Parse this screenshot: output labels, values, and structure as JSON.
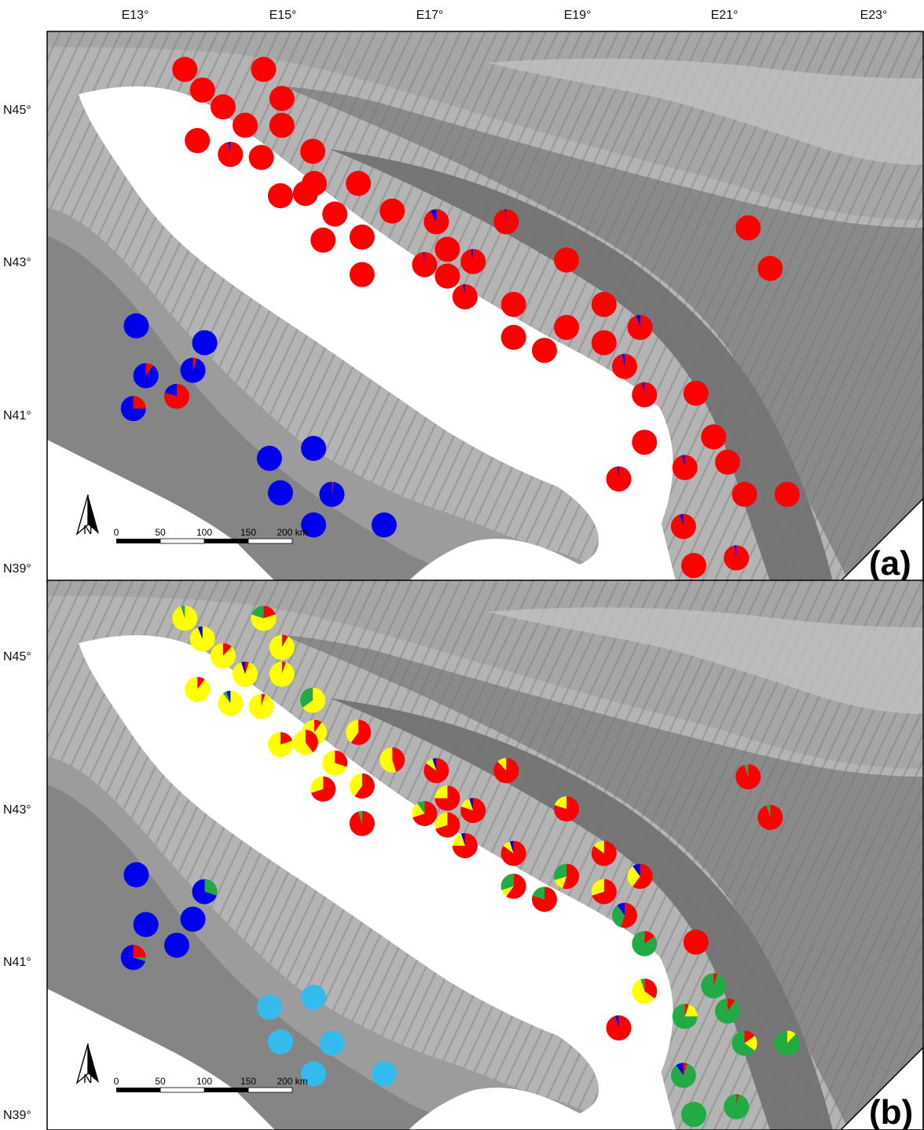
{
  "map": {
    "x_ticks": [
      "E13°",
      "E15°",
      "E17°",
      "E19°",
      "E21°",
      "E23°"
    ],
    "y_ticks": [
      "N45°",
      "N43°",
      "N41°",
      "N39°"
    ],
    "scale_bar": {
      "labels": [
        "0",
        "50",
        "100",
        "150",
        "200 km"
      ]
    },
    "north_label": "N",
    "panels": [
      {
        "label": "(a)"
      },
      {
        "label": "(b)"
      }
    ]
  },
  "colors": {
    "red": "#ff0000",
    "yellow": "#ffff00",
    "blue": "#0000ee",
    "green": "#22aa44",
    "cyan": "#33bbee",
    "sea": "#ffffff",
    "land_light": "#c8c8c8",
    "land_mid": "#a2a2a2",
    "land_dark": "#7a7a7a"
  },
  "panel_a_pies": [
    {
      "lon": 13.68,
      "lat": 45.75,
      "f": {
        "red": 1
      }
    },
    {
      "lon": 14.75,
      "lat": 45.75,
      "f": {
        "red": 1
      }
    },
    {
      "lon": 13.92,
      "lat": 45.48,
      "f": {
        "red": 1
      }
    },
    {
      "lon": 15.0,
      "lat": 45.37,
      "f": {
        "red": 1
      }
    },
    {
      "lon": 14.2,
      "lat": 45.26,
      "f": {
        "red": 1
      }
    },
    {
      "lon": 14.5,
      "lat": 45.02,
      "f": {
        "red": 1
      }
    },
    {
      "lon": 15.0,
      "lat": 45.02,
      "f": {
        "red": 1
      }
    },
    {
      "lon": 13.85,
      "lat": 44.82,
      "f": {
        "red": 1
      }
    },
    {
      "lon": 14.3,
      "lat": 44.64,
      "f": {
        "red": 0.97,
        "blue": 0.03
      }
    },
    {
      "lon": 14.72,
      "lat": 44.6,
      "f": {
        "red": 1
      }
    },
    {
      "lon": 15.42,
      "lat": 44.68,
      "f": {
        "red": 1
      }
    },
    {
      "lon": 15.44,
      "lat": 44.26,
      "f": {
        "red": 1
      }
    },
    {
      "lon": 16.04,
      "lat": 44.26,
      "f": {
        "red": 1
      }
    },
    {
      "lon": 14.98,
      "lat": 44.1,
      "f": {
        "red": 1
      }
    },
    {
      "lon": 15.32,
      "lat": 44.13,
      "f": {
        "red": 1
      }
    },
    {
      "lon": 15.72,
      "lat": 43.86,
      "f": {
        "red": 1
      }
    },
    {
      "lon": 16.5,
      "lat": 43.9,
      "f": {
        "red": 1
      }
    },
    {
      "lon": 17.1,
      "lat": 43.76,
      "f": {
        "red": 0.92,
        "blue": 0.08
      }
    },
    {
      "lon": 18.05,
      "lat": 43.76,
      "f": {
        "red": 0.98,
        "blue": 0.02
      }
    },
    {
      "lon": 15.56,
      "lat": 43.52,
      "f": {
        "red": 1
      }
    },
    {
      "lon": 16.09,
      "lat": 43.56,
      "f": {
        "red": 1
      }
    },
    {
      "lon": 17.25,
      "lat": 43.4,
      "f": {
        "red": 1
      }
    },
    {
      "lon": 17.6,
      "lat": 43.24,
      "f": {
        "red": 0.97,
        "blue": 0.03
      }
    },
    {
      "lon": 16.94,
      "lat": 43.2,
      "f": {
        "red": 0.98,
        "blue": 0.02
      }
    },
    {
      "lon": 18.87,
      "lat": 43.26,
      "f": {
        "red": 1
      }
    },
    {
      "lon": 21.34,
      "lat": 43.68,
      "f": {
        "red": 1
      }
    },
    {
      "lon": 21.64,
      "lat": 43.15,
      "f": {
        "red": 1
      }
    },
    {
      "lon": 16.09,
      "lat": 43.07,
      "f": {
        "red": 1
      }
    },
    {
      "lon": 17.25,
      "lat": 43.05,
      "f": {
        "red": 1
      }
    },
    {
      "lon": 17.49,
      "lat": 42.78,
      "f": {
        "red": 0.97,
        "blue": 0.03
      }
    },
    {
      "lon": 18.15,
      "lat": 42.68,
      "f": {
        "red": 1
      }
    },
    {
      "lon": 19.38,
      "lat": 42.68,
      "f": {
        "red": 1
      }
    },
    {
      "lon": 18.87,
      "lat": 42.38,
      "f": {
        "red": 1
      }
    },
    {
      "lon": 19.87,
      "lat": 42.38,
      "f": {
        "red": 0.95,
        "blue": 0.05
      }
    },
    {
      "lon": 18.15,
      "lat": 42.25,
      "f": {
        "red": 1
      }
    },
    {
      "lon": 19.38,
      "lat": 42.18,
      "f": {
        "red": 1
      }
    },
    {
      "lon": 18.57,
      "lat": 42.08,
      "f": {
        "red": 1
      }
    },
    {
      "lon": 19.66,
      "lat": 41.87,
      "f": {
        "red": 0.96,
        "blue": 0.04
      }
    },
    {
      "lon": 19.93,
      "lat": 41.5,
      "f": {
        "red": 0.97,
        "blue": 0.03
      }
    },
    {
      "lon": 20.63,
      "lat": 41.52,
      "f": {
        "red": 1
      }
    },
    {
      "lon": 20.87,
      "lat": 40.95,
      "f": {
        "red": 1
      }
    },
    {
      "lon": 19.93,
      "lat": 40.88,
      "f": {
        "red": 1
      }
    },
    {
      "lon": 21.06,
      "lat": 40.62,
      "f": {
        "red": 1
      }
    },
    {
      "lon": 20.48,
      "lat": 40.55,
      "f": {
        "red": 0.96,
        "blue": 0.04
      }
    },
    {
      "lon": 19.58,
      "lat": 40.4,
      "f": {
        "red": 0.98,
        "blue": 0.02
      }
    },
    {
      "lon": 21.29,
      "lat": 40.2,
      "f": {
        "red": 1
      }
    },
    {
      "lon": 21.87,
      "lat": 40.2,
      "f": {
        "red": 1
      }
    },
    {
      "lon": 20.46,
      "lat": 39.78,
      "f": {
        "red": 0.95,
        "blue": 0.05
      }
    },
    {
      "lon": 20.6,
      "lat": 39.27,
      "f": {
        "red": 1
      }
    },
    {
      "lon": 21.18,
      "lat": 39.37,
      "f": {
        "red": 0.97,
        "blue": 0.03
      }
    },
    {
      "lon": 13.02,
      "lat": 42.4,
      "f": {
        "blue": 1
      }
    },
    {
      "lon": 13.95,
      "lat": 42.18,
      "f": {
        "blue": 1
      }
    },
    {
      "lon": 13.15,
      "lat": 41.75,
      "f": {
        "red": 0.1,
        "blue": 0.9
      }
    },
    {
      "lon": 13.79,
      "lat": 41.82,
      "f": {
        "red": 0.05,
        "blue": 0.95
      }
    },
    {
      "lon": 13.57,
      "lat": 41.48,
      "f": {
        "red": 0.8,
        "blue": 0.2
      }
    },
    {
      "lon": 12.98,
      "lat": 41.32,
      "f": {
        "red": 0.25,
        "blue": 0.75
      }
    },
    {
      "lon": 14.83,
      "lat": 40.67,
      "f": {
        "blue": 1
      }
    },
    {
      "lon": 15.43,
      "lat": 40.8,
      "f": {
        "blue": 1
      }
    },
    {
      "lon": 14.98,
      "lat": 40.22,
      "f": {
        "blue": 1
      }
    },
    {
      "lon": 15.68,
      "lat": 40.2,
      "f": {
        "red": 0.02,
        "blue": 0.98
      }
    },
    {
      "lon": 15.43,
      "lat": 39.8,
      "f": {
        "blue": 1
      }
    },
    {
      "lon": 16.39,
      "lat": 39.8,
      "f": {
        "blue": 1
      }
    }
  ],
  "panel_b_pies": [
    {
      "lon": 13.68,
      "lat": 45.75,
      "f": {
        "yellow": 0.95,
        "green": 0.05
      }
    },
    {
      "lon": 14.75,
      "lat": 45.75,
      "f": {
        "yellow": 0.6,
        "red": 0.2,
        "green": 0.2
      }
    },
    {
      "lon": 13.92,
      "lat": 45.48,
      "f": {
        "yellow": 0.94,
        "blue": 0.06
      }
    },
    {
      "lon": 15.0,
      "lat": 45.37,
      "f": {
        "yellow": 0.92,
        "red": 0.08
      }
    },
    {
      "lon": 14.2,
      "lat": 45.26,
      "f": {
        "yellow": 0.88,
        "red": 0.12
      }
    },
    {
      "lon": 14.5,
      "lat": 45.02,
      "f": {
        "yellow": 0.9,
        "red": 0.05,
        "blue": 0.05
      }
    },
    {
      "lon": 15.0,
      "lat": 45.02,
      "f": {
        "yellow": 0.95,
        "red": 0.05
      }
    },
    {
      "lon": 13.85,
      "lat": 44.82,
      "f": {
        "yellow": 0.9,
        "red": 0.1
      }
    },
    {
      "lon": 14.3,
      "lat": 44.64,
      "f": {
        "yellow": 0.9,
        "blue": 0.05,
        "green": 0.05
      }
    },
    {
      "lon": 14.72,
      "lat": 44.6,
      "f": {
        "yellow": 0.95,
        "red": 0.05
      }
    },
    {
      "lon": 15.42,
      "lat": 44.68,
      "f": {
        "yellow": 0.65,
        "green": 0.35
      }
    },
    {
      "lon": 15.44,
      "lat": 44.26,
      "f": {
        "yellow": 0.9,
        "red": 0.1
      }
    },
    {
      "lon": 16.04,
      "lat": 44.26,
      "f": {
        "red": 0.6,
        "yellow": 0.4
      }
    },
    {
      "lon": 14.98,
      "lat": 44.1,
      "f": {
        "yellow": 0.8,
        "red": 0.2
      }
    },
    {
      "lon": 15.32,
      "lat": 44.13,
      "f": {
        "yellow": 0.6,
        "red": 0.4
      }
    },
    {
      "lon": 15.72,
      "lat": 43.86,
      "f": {
        "yellow": 0.7,
        "red": 0.3
      }
    },
    {
      "lon": 16.5,
      "lat": 43.9,
      "f": {
        "yellow": 0.55,
        "red": 0.45
      }
    },
    {
      "lon": 17.1,
      "lat": 43.76,
      "f": {
        "red": 0.85,
        "yellow": 0.1,
        "blue": 0.05
      }
    },
    {
      "lon": 18.05,
      "lat": 43.76,
      "f": {
        "red": 0.88,
        "yellow": 0.12
      }
    },
    {
      "lon": 15.56,
      "lat": 43.52,
      "f": {
        "red": 0.7,
        "yellow": 0.3
      }
    },
    {
      "lon": 16.09,
      "lat": 43.56,
      "f": {
        "red": 0.6,
        "yellow": 0.4
      }
    },
    {
      "lon": 17.25,
      "lat": 43.4,
      "f": {
        "red": 0.75,
        "yellow": 0.25
      }
    },
    {
      "lon": 17.6,
      "lat": 43.24,
      "f": {
        "red": 0.8,
        "yellow": 0.15,
        "blue": 0.05
      }
    },
    {
      "lon": 16.94,
      "lat": 43.2,
      "f": {
        "red": 0.7,
        "yellow": 0.2,
        "green": 0.1
      }
    },
    {
      "lon": 18.87,
      "lat": 43.26,
      "f": {
        "red": 0.8,
        "yellow": 0.2
      }
    },
    {
      "lon": 21.34,
      "lat": 43.68,
      "f": {
        "red": 0.95,
        "green": 0.05
      }
    },
    {
      "lon": 21.64,
      "lat": 43.15,
      "f": {
        "red": 0.95,
        "green": 0.05
      }
    },
    {
      "lon": 16.09,
      "lat": 43.07,
      "f": {
        "red": 0.95,
        "green": 0.05
      }
    },
    {
      "lon": 17.25,
      "lat": 43.05,
      "f": {
        "red": 0.7,
        "yellow": 0.3
      }
    },
    {
      "lon": 17.49,
      "lat": 42.78,
      "f": {
        "red": 0.75,
        "yellow": 0.2,
        "blue": 0.05
      }
    },
    {
      "lon": 18.15,
      "lat": 42.68,
      "f": {
        "red": 0.85,
        "yellow": 0.1,
        "blue": 0.05
      }
    },
    {
      "lon": 19.38,
      "lat": 42.68,
      "f": {
        "red": 0.85,
        "yellow": 0.15
      }
    },
    {
      "lon": 18.87,
      "lat": 42.38,
      "f": {
        "red": 0.55,
        "green": 0.3,
        "yellow": 0.15
      }
    },
    {
      "lon": 19.87,
      "lat": 42.38,
      "f": {
        "red": 0.6,
        "yellow": 0.3,
        "blue": 0.1
      }
    },
    {
      "lon": 18.15,
      "lat": 42.25,
      "f": {
        "red": 0.6,
        "green": 0.3,
        "yellow": 0.1
      }
    },
    {
      "lon": 19.38,
      "lat": 42.18,
      "f": {
        "red": 0.7,
        "yellow": 0.3
      }
    },
    {
      "lon": 18.57,
      "lat": 42.08,
      "f": {
        "red": 0.8,
        "green": 0.2
      }
    },
    {
      "lon": 19.66,
      "lat": 41.87,
      "f": {
        "red": 0.55,
        "green": 0.35,
        "blue": 0.1
      }
    },
    {
      "lon": 19.93,
      "lat": 41.5,
      "f": {
        "green": 0.85,
        "red": 0.15
      }
    },
    {
      "lon": 20.63,
      "lat": 41.52,
      "f": {
        "red": 1
      }
    },
    {
      "lon": 20.87,
      "lat": 40.95,
      "f": {
        "green": 0.95,
        "red": 0.05
      }
    },
    {
      "lon": 19.93,
      "lat": 40.88,
      "f": {
        "yellow": 0.6,
        "red": 0.35,
        "green": 0.05
      }
    },
    {
      "lon": 21.06,
      "lat": 40.62,
      "f": {
        "green": 0.9,
        "red": 0.1
      }
    },
    {
      "lon": 20.48,
      "lat": 40.55,
      "f": {
        "green": 0.75,
        "yellow": 0.2,
        "red": 0.05
      }
    },
    {
      "lon": 19.58,
      "lat": 40.4,
      "f": {
        "red": 0.95,
        "blue": 0.05
      }
    },
    {
      "lon": 21.29,
      "lat": 40.2,
      "f": {
        "green": 0.65,
        "yellow": 0.2,
        "red": 0.15
      }
    },
    {
      "lon": 21.87,
      "lat": 40.2,
      "f": {
        "green": 0.88,
        "yellow": 0.12
      }
    },
    {
      "lon": 20.46,
      "lat": 39.78,
      "f": {
        "green": 0.85,
        "blue": 0.1,
        "red": 0.05
      }
    },
    {
      "lon": 20.6,
      "lat": 39.27,
      "f": {
        "green": 1
      }
    },
    {
      "lon": 21.18,
      "lat": 39.37,
      "f": {
        "green": 0.97,
        "red": 0.03
      }
    },
    {
      "lon": 13.02,
      "lat": 42.4,
      "f": {
        "blue": 1
      }
    },
    {
      "lon": 13.95,
      "lat": 42.18,
      "f": {
        "blue": 0.7,
        "green": 0.3
      }
    },
    {
      "lon": 13.15,
      "lat": 41.75,
      "f": {
        "blue": 1
      }
    },
    {
      "lon": 13.79,
      "lat": 41.82,
      "f": {
        "blue": 1
      }
    },
    {
      "lon": 13.57,
      "lat": 41.48,
      "f": {
        "blue": 1
      }
    },
    {
      "lon": 12.98,
      "lat": 41.32,
      "f": {
        "blue": 0.7,
        "red": 0.25,
        "green": 0.05
      }
    },
    {
      "lon": 14.83,
      "lat": 40.67,
      "f": {
        "cyan": 1
      }
    },
    {
      "lon": 15.43,
      "lat": 40.8,
      "f": {
        "cyan": 1
      }
    },
    {
      "lon": 14.98,
      "lat": 40.22,
      "f": {
        "cyan": 1
      }
    },
    {
      "lon": 15.68,
      "lat": 40.2,
      "f": {
        "cyan": 1
      }
    },
    {
      "lon": 15.43,
      "lat": 39.8,
      "f": {
        "cyan": 1
      }
    },
    {
      "lon": 16.39,
      "lat": 39.8,
      "f": {
        "cyan": 1
      }
    }
  ]
}
